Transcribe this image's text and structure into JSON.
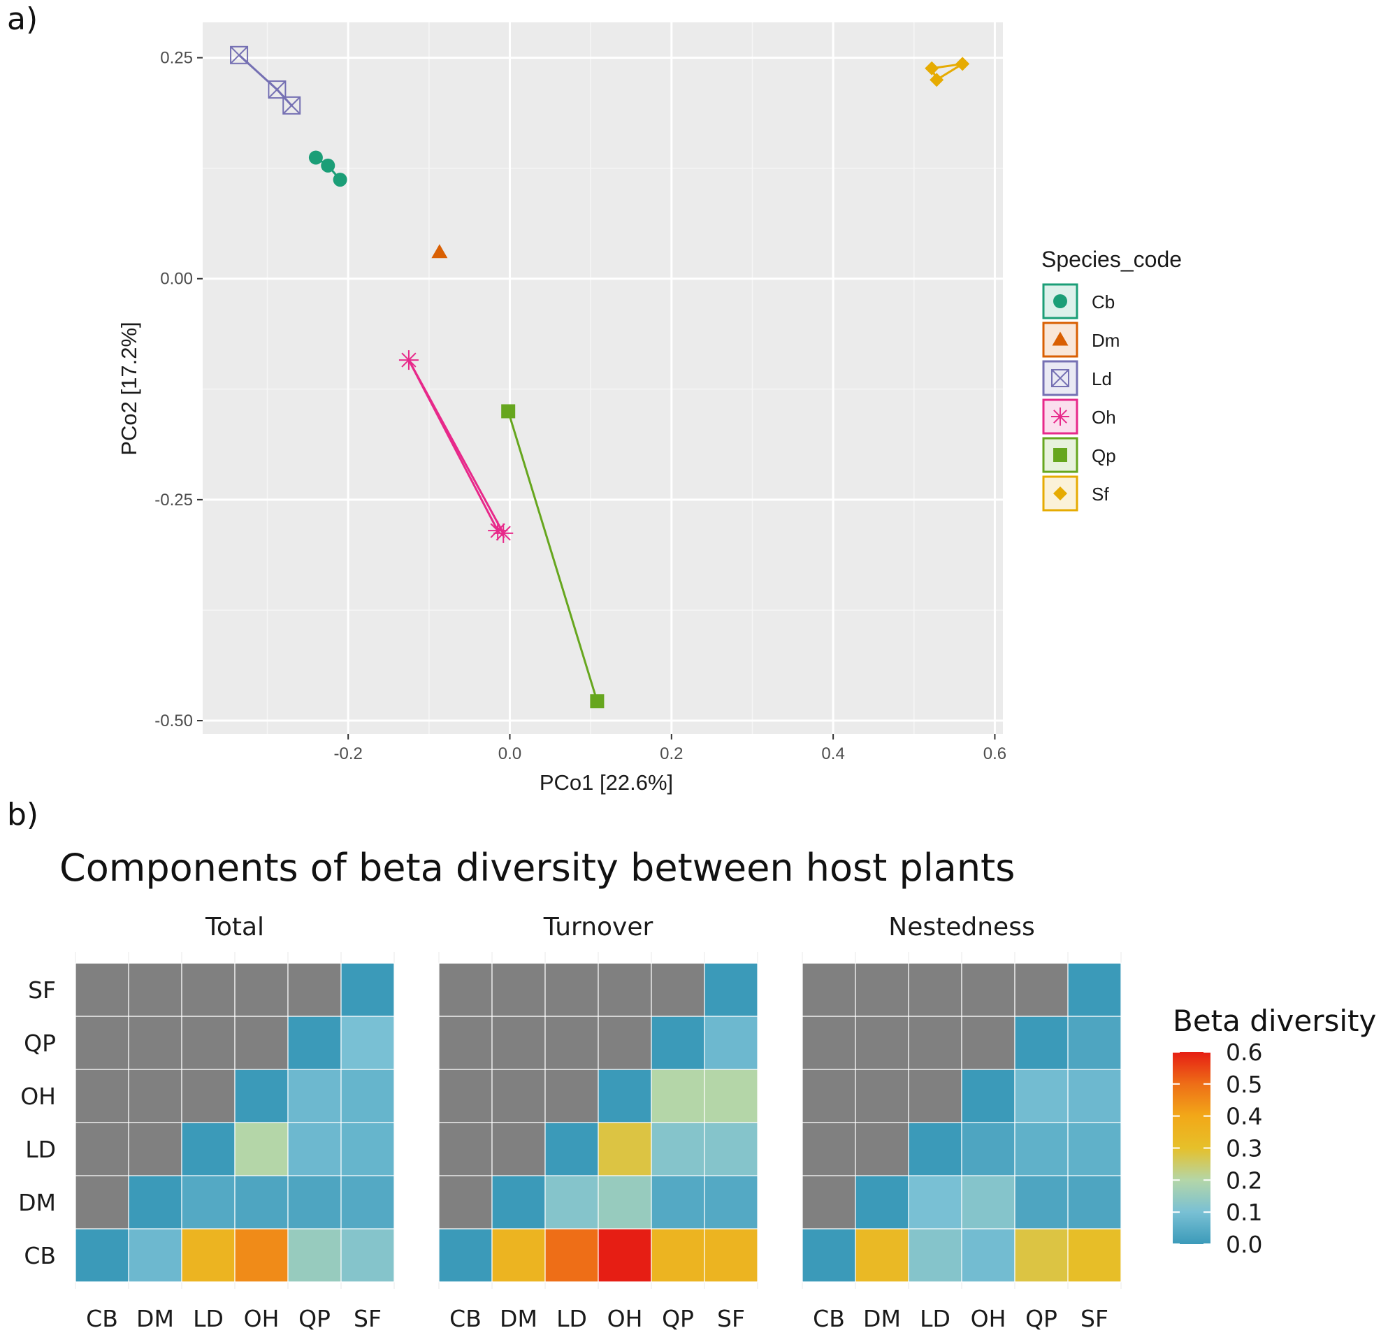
{
  "panel_a_label": "a)",
  "panel_b_label": "b)",
  "chart_data": [
    {
      "type": "scatter",
      "title": "",
      "xlabel": "PCo1 [22.6%]",
      "ylabel": "PCo2 [17.2%]",
      "xlim": [
        -0.38,
        0.61
      ],
      "ylim": [
        -0.515,
        0.29
      ],
      "xticks": [
        -0.2,
        0.0,
        0.2,
        0.4,
        0.6
      ],
      "xtick_labels": [
        "-0.2",
        "0.0",
        "0.2",
        "0.4",
        "0.6"
      ],
      "yticks": [
        0.25,
        0.0,
        -0.25,
        -0.5
      ],
      "ytick_labels": [
        "0.25",
        "0.00",
        "-0.25",
        "-0.50"
      ],
      "grid": true,
      "legend_title": "Species_code",
      "legend_position": "right",
      "series": [
        {
          "name": "Cb",
          "color": "#1b9e77",
          "shape": "circle",
          "points": [
            [
              -0.24,
              0.137
            ],
            [
              -0.225,
              0.128
            ],
            [
              -0.21,
              0.112
            ]
          ],
          "lines": [
            [
              [
                -0.24,
                0.137
              ],
              [
                -0.225,
                0.128
              ],
              [
                -0.21,
                0.112
              ]
            ]
          ]
        },
        {
          "name": "Dm",
          "color": "#d95f02",
          "shape": "triangle",
          "points": [
            [
              -0.087,
              0.03
            ]
          ],
          "lines": []
        },
        {
          "name": "Ld",
          "color": "#7570b3",
          "shape": "square-cross",
          "points": [
            [
              -0.335,
              0.253
            ],
            [
              -0.288,
              0.214
            ],
            [
              -0.27,
              0.196
            ]
          ],
          "lines": [
            [
              [
                -0.335,
                0.253
              ],
              [
                -0.288,
                0.214
              ],
              [
                -0.27,
                0.196
              ]
            ]
          ]
        },
        {
          "name": "Oh",
          "color": "#e7298a",
          "shape": "asterisk",
          "points": [
            [
              -0.125,
              -0.092
            ],
            [
              -0.015,
              -0.285
            ],
            [
              -0.008,
              -0.288
            ]
          ],
          "lines": [
            [
              [
                -0.125,
                -0.092
              ],
              [
                -0.015,
                -0.285
              ]
            ],
            [
              [
                -0.125,
                -0.092
              ],
              [
                -0.008,
                -0.288
              ]
            ]
          ]
        },
        {
          "name": "Qp",
          "color": "#66a61e",
          "shape": "square",
          "points": [
            [
              -0.002,
              -0.15
            ],
            [
              0.108,
              -0.478
            ]
          ],
          "lines": [
            [
              [
                -0.002,
                -0.15
              ],
              [
                0.108,
                -0.478
              ]
            ]
          ]
        },
        {
          "name": "Sf",
          "color": "#e6ab02",
          "shape": "diamond",
          "points": [
            [
              0.522,
              0.238
            ],
            [
              0.528,
              0.225
            ],
            [
              0.56,
              0.243
            ]
          ],
          "lines": [
            [
              [
                0.522,
                0.238
              ],
              [
                0.528,
                0.225
              ],
              [
                0.56,
                0.243
              ],
              [
                0.522,
                0.238
              ]
            ]
          ]
        }
      ]
    },
    {
      "type": "heatmap",
      "title": "Components of beta diversity between host plants",
      "x_categories": [
        "CB",
        "DM",
        "LD",
        "OH",
        "QP",
        "SF"
      ],
      "y_categories": [
        "CB",
        "DM",
        "LD",
        "OH",
        "QP",
        "SF"
      ],
      "legend_title": "Beta diversity",
      "scale_range": [
        0.0,
        0.6
      ],
      "scale_ticks": [
        0.6,
        0.5,
        0.4,
        0.3,
        0.2,
        0.1,
        0.0
      ],
      "scale_tick_labels": [
        "0.6",
        "0.5",
        "0.4",
        "0.3",
        "0.2",
        "0.1",
        "0.0"
      ],
      "scale_colors": [
        "#3b9ab9",
        "#79c0d4",
        "#b4d6a8",
        "#e6c02a",
        "#f2a818",
        "#ee6e17",
        "#e61e14"
      ],
      "missing_color": "#808080",
      "facets": [
        {
          "name": "Total",
          "values": [
            [
              0.0,
              0.08,
              0.35,
              0.45,
              0.15,
              0.12
            ],
            [
              null,
              0.0,
              0.04,
              0.03,
              0.03,
              0.04
            ],
            [
              null,
              null,
              0.0,
              0.2,
              0.08,
              0.07
            ],
            [
              null,
              null,
              null,
              0.0,
              0.08,
              0.07
            ],
            [
              null,
              null,
              null,
              null,
              0.0,
              0.1
            ],
            [
              null,
              null,
              null,
              null,
              null,
              0.0
            ]
          ]
        },
        {
          "name": "Turnover",
          "values": [
            [
              0.0,
              0.35,
              0.5,
              0.6,
              0.35,
              0.35
            ],
            [
              null,
              0.0,
              0.12,
              0.15,
              0.04,
              0.04
            ],
            [
              null,
              null,
              0.0,
              0.28,
              0.12,
              0.12
            ],
            [
              null,
              null,
              null,
              0.0,
              0.2,
              0.2
            ],
            [
              null,
              null,
              null,
              null,
              0.0,
              0.08
            ],
            [
              null,
              null,
              null,
              null,
              null,
              0.0
            ]
          ]
        },
        {
          "name": "Nestedness",
          "values": [
            [
              0.0,
              0.33,
              0.12,
              0.09,
              0.28,
              0.31
            ],
            [
              null,
              0.0,
              0.1,
              0.12,
              0.03,
              0.03
            ],
            [
              null,
              null,
              0.0,
              0.03,
              0.06,
              0.06
            ],
            [
              null,
              null,
              null,
              0.0,
              0.09,
              0.08
            ],
            [
              null,
              null,
              null,
              null,
              0.0,
              0.03
            ],
            [
              null,
              null,
              null,
              null,
              null,
              0.0
            ]
          ]
        }
      ]
    }
  ]
}
